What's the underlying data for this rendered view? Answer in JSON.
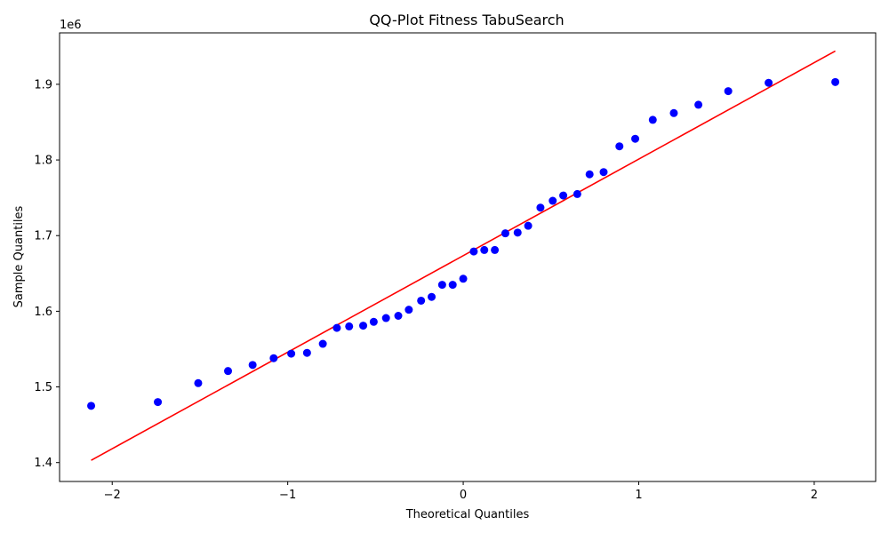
{
  "chart_data": {
    "type": "scatter",
    "title": "QQ-Plot Fitness TabuSearch",
    "xlabel": "Theoretical Quantiles",
    "ylabel": "Sample Quantiles",
    "y_offset_label": "1e6",
    "xlim": [
      -2.3,
      2.35
    ],
    "ylim": [
      1.375,
      1.968
    ],
    "x_ticks": [
      -2,
      -1,
      0,
      1,
      2
    ],
    "x_tick_labels": [
      "−2",
      "−1",
      "0",
      "1",
      "2"
    ],
    "y_ticks": [
      1.4,
      1.5,
      1.6,
      1.7,
      1.8,
      1.9
    ],
    "y_tick_labels": [
      "1.4",
      "1.5",
      "1.6",
      "1.7",
      "1.8",
      "1.9"
    ],
    "grid": false,
    "points_color": "#0000ff",
    "line_color": "#ff0000",
    "points": {
      "x": [
        -2.12,
        -1.74,
        -1.51,
        -1.34,
        -1.2,
        -1.08,
        -0.98,
        -0.89,
        -0.8,
        -0.72,
        -0.65,
        -0.57,
        -0.51,
        -0.44,
        -0.37,
        -0.31,
        -0.24,
        -0.18,
        -0.12,
        -0.06,
        0.0,
        0.06,
        0.12,
        0.18,
        0.24,
        0.31,
        0.37,
        0.44,
        0.51,
        0.57,
        0.65,
        0.72,
        0.8,
        0.89,
        0.98,
        1.08,
        1.2,
        1.34,
        1.51,
        1.74,
        2.12
      ],
      "y": [
        1.475,
        1.48,
        1.505,
        1.521,
        1.529,
        1.538,
        1.544,
        1.545,
        1.557,
        1.578,
        1.58,
        1.581,
        1.586,
        1.591,
        1.594,
        1.602,
        1.614,
        1.619,
        1.635,
        1.635,
        1.643,
        1.679,
        1.681,
        1.681,
        1.703,
        1.704,
        1.713,
        1.737,
        1.746,
        1.753,
        1.755,
        1.781,
        1.784,
        1.818,
        1.828,
        1.853,
        1.862,
        1.873,
        1.891,
        1.902,
        1.903
      ]
    },
    "reference_line": {
      "x": [
        -2.12,
        2.12
      ],
      "y": [
        1.403,
        1.944
      ]
    }
  }
}
